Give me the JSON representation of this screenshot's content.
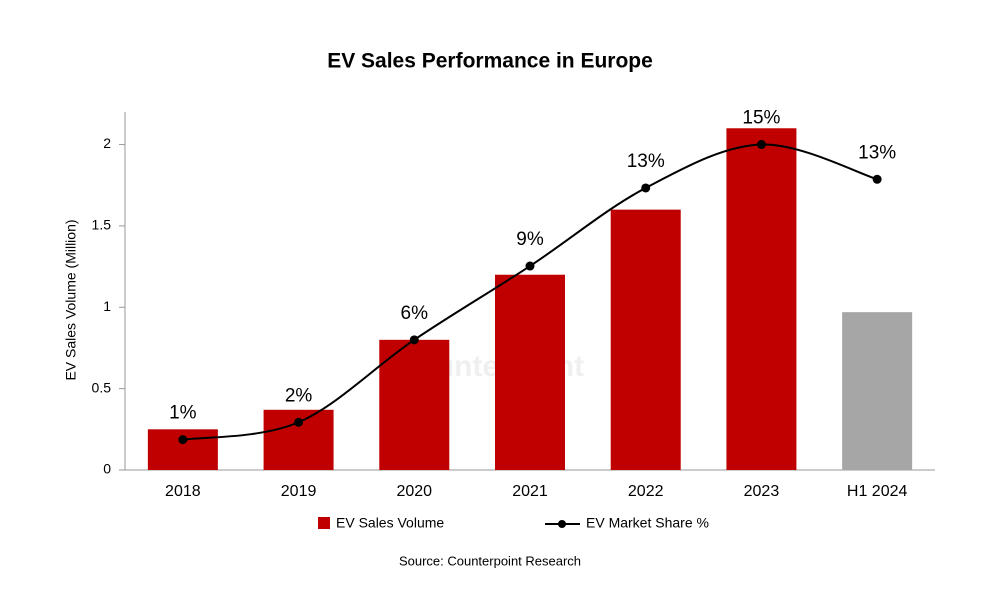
{
  "chart_data": {
    "type": "bar_line",
    "title": "EV Sales Performance in Europe",
    "y_label": "EV Sales Volume (Million)",
    "source": "Source: Counterpoint Research",
    "watermark": "Counterpoint",
    "categories": [
      "2018",
      "2019",
      "2020",
      "2021",
      "2022",
      "2023",
      "H1 2024"
    ],
    "series": [
      {
        "name": "EV Sales Volume",
        "color": "#c00000",
        "colors": [
          "#c00000",
          "#c00000",
          "#c00000",
          "#c00000",
          "#c00000",
          "#c00000",
          "#a6a6a6"
        ],
        "values": [
          0.25,
          0.37,
          0.8,
          1.2,
          1.6,
          2.1,
          0.97
        ]
      },
      {
        "name": "EV Market Share %",
        "color": "#000000",
        "axis": "y2",
        "values": [
          1.4,
          2.2,
          6.0,
          9.4,
          13.0,
          15.0,
          13.4
        ],
        "value_labels": [
          "1%",
          "2%",
          "6%",
          "9%",
          "13%",
          "15%",
          "13%"
        ]
      }
    ],
    "ylim": [
      0,
      2.2
    ],
    "yticks": [
      0,
      0.5,
      1,
      1.5,
      2
    ],
    "y2lim": [
      0,
      16.5
    ],
    "legend": "bottom"
  }
}
